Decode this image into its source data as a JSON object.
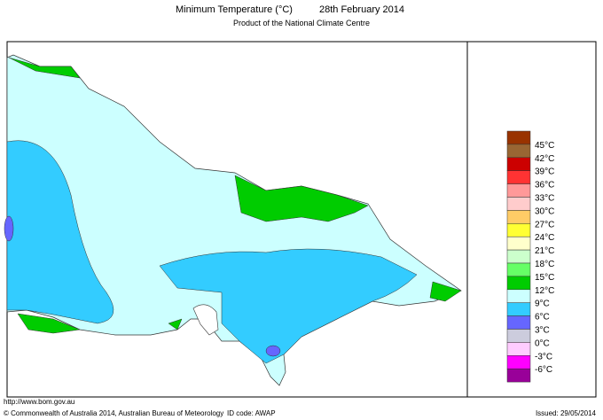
{
  "header": {
    "title": "Minimum Temperature (°C)",
    "date": "28th February 2014",
    "subtitle": "Product of the National Climate Centre"
  },
  "legend": {
    "items": [
      {
        "color": "#993300"
      },
      {
        "label": "45°C",
        "color": "#996633"
      },
      {
        "label": "42°C",
        "color": "#cc0000"
      },
      {
        "label": "39°C",
        "color": "#ff3333"
      },
      {
        "label": "36°C",
        "color": "#ff9999"
      },
      {
        "label": "33°C",
        "color": "#ffcccc"
      },
      {
        "label": "30°C",
        "color": "#ffcc66"
      },
      {
        "label": "27°C",
        "color": "#ffff33"
      },
      {
        "label": "24°C",
        "color": "#ffffcc"
      },
      {
        "label": "21°C",
        "color": "#ccffcc"
      },
      {
        "label": "18°C",
        "color": "#66ff66"
      },
      {
        "label": "15°C",
        "color": "#00cc00"
      },
      {
        "label": "12°C",
        "color": "#ccffff"
      },
      {
        "label": "9°C",
        "color": "#33ccff"
      },
      {
        "label": "6°C",
        "color": "#6666ff"
      },
      {
        "label": "3°C",
        "color": "#ccccdd"
      },
      {
        "label": "0°C",
        "color": "#ffccff"
      },
      {
        "label": "-3°C",
        "color": "#ff00ff"
      },
      {
        "label": "-6°C",
        "color": "#990099"
      }
    ]
  },
  "footer": {
    "url": "http://www.bom.gov.au",
    "copyright": "© Commonwealth of Australia 2014, Australian Bureau of Meteorology",
    "id_code": "ID code: AWAP",
    "issued": "Issued: 29/05/2014"
  }
}
